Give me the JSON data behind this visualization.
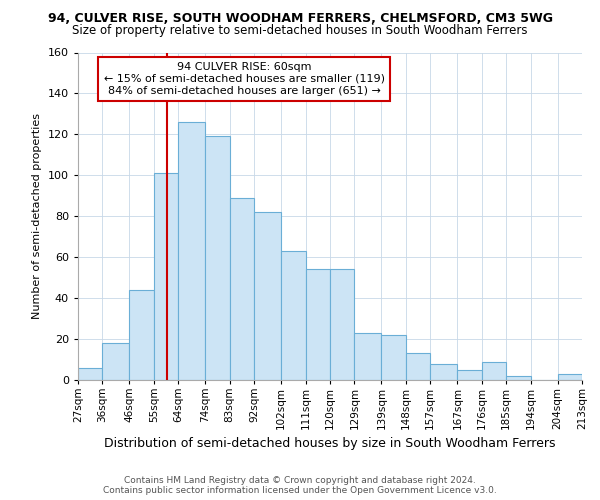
{
  "title1": "94, CULVER RISE, SOUTH WOODHAM FERRERS, CHELMSFORD, CM3 5WG",
  "title2": "Size of property relative to semi-detached houses in South Woodham Ferrers",
  "xlabel": "Distribution of semi-detached houses by size in South Woodham Ferrers",
  "ylabel": "Number of semi-detached properties",
  "footer1": "Contains HM Land Registry data © Crown copyright and database right 2024.",
  "footer2": "Contains public sector information licensed under the Open Government Licence v3.0.",
  "bin_labels": [
    "27sqm",
    "36sqm",
    "46sqm",
    "55sqm",
    "64sqm",
    "74sqm",
    "83sqm",
    "92sqm",
    "102sqm",
    "111sqm",
    "120sqm",
    "129sqm",
    "139sqm",
    "148sqm",
    "157sqm",
    "167sqm",
    "176sqm",
    "185sqm",
    "194sqm",
    "204sqm",
    "213sqm"
  ],
  "bin_edges": [
    27,
    36,
    46,
    55,
    64,
    74,
    83,
    92,
    102,
    111,
    120,
    129,
    139,
    148,
    157,
    167,
    176,
    185,
    194,
    204,
    213
  ],
  "bar_values": [
    6,
    18,
    44,
    101,
    126,
    119,
    89,
    82,
    63,
    54,
    54,
    23,
    22,
    13,
    8,
    5,
    9,
    2,
    0,
    3
  ],
  "bar_color": "#cce4f5",
  "bar_edge_color": "#6aaed6",
  "vline_x": 60,
  "vline_color": "#cc0000",
  "annotation_line1": "94 CULVER RISE: 60sqm",
  "annotation_line2": "← 15% of semi-detached houses are smaller (119)",
  "annotation_line3": "84% of semi-detached houses are larger (651) →",
  "annotation_box_color": "white",
  "annotation_box_edge": "#cc0000",
  "ylim": [
    0,
    160
  ],
  "yticks": [
    0,
    20,
    40,
    60,
    80,
    100,
    120,
    140,
    160
  ],
  "grid_color": "#c8d8e8",
  "title1_fontsize": 9,
  "title2_fontsize": 8.5
}
